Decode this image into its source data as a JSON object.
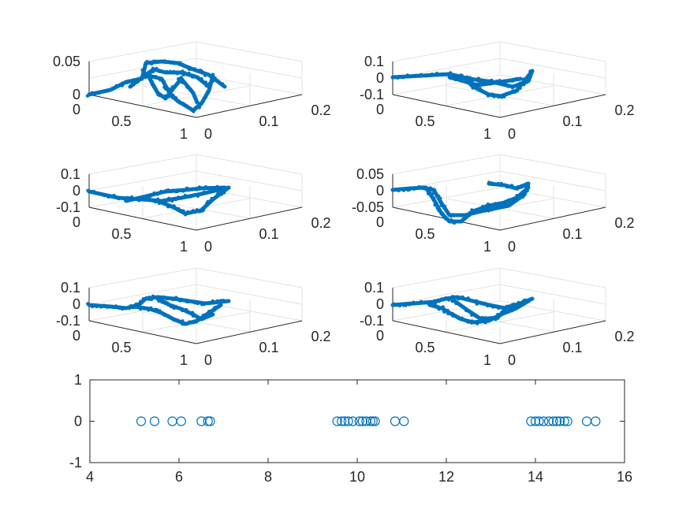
{
  "chart_data": [
    {
      "type": "scatter3d",
      "name": "top-left",
      "z_ticks": [
        "0",
        "0.05"
      ],
      "x_ticks": [
        "0",
        "0.5",
        "1"
      ],
      "y_ticks": [
        "0",
        "0.1",
        "0.2"
      ]
    },
    {
      "type": "scatter3d",
      "name": "top-right",
      "z_ticks": [
        "-0.1",
        "0",
        "0.1"
      ],
      "x_ticks": [
        "0",
        "0.5",
        "1"
      ],
      "y_ticks": [
        "0",
        "0.1",
        "0.2"
      ]
    },
    {
      "type": "scatter3d",
      "name": "middle-left",
      "z_ticks": [
        "-0.1",
        "0",
        "0.1"
      ],
      "x_ticks": [
        "0",
        "0.5",
        "1"
      ],
      "y_ticks": [
        "0",
        "0.1",
        "0.2"
      ]
    },
    {
      "type": "scatter3d",
      "name": "middle-right",
      "z_ticks": [
        "-0.05",
        "0",
        "0.05"
      ],
      "x_ticks": [
        "0",
        "0.5",
        "1"
      ],
      "y_ticks": [
        "0",
        "0.1",
        "0.2"
      ]
    },
    {
      "type": "scatter3d",
      "name": "lower-left",
      "z_ticks": [
        "-0.1",
        "0",
        "0.1"
      ],
      "x_ticks": [
        "0",
        "0.5",
        "1"
      ],
      "y_ticks": [
        "0",
        "0.1",
        "0.2"
      ]
    },
    {
      "type": "scatter3d",
      "name": "lower-right",
      "z_ticks": [
        "-0.1",
        "0",
        "0.1"
      ],
      "x_ticks": [
        "0",
        "0.5",
        "1"
      ],
      "y_ticks": [
        "0",
        "0.1",
        "0.2"
      ]
    },
    {
      "type": "scatter",
      "marker": "open-circle",
      "xlim": [
        4,
        16
      ],
      "ylim": [
        -1,
        1
      ],
      "x_ticks": [
        "4",
        "6",
        "8",
        "10",
        "12",
        "14",
        "16"
      ],
      "y_ticks": [
        "-1",
        "0",
        "1"
      ],
      "x": [
        5.15,
        5.45,
        5.85,
        6.05,
        6.5,
        6.65,
        6.7,
        9.55,
        9.65,
        9.72,
        9.8,
        9.9,
        10.05,
        10.12,
        10.2,
        10.3,
        10.35,
        10.4,
        10.85,
        11.05,
        13.9,
        14.0,
        14.08,
        14.18,
        14.3,
        14.4,
        14.48,
        14.55,
        14.65,
        14.72,
        15.15,
        15.35
      ],
      "y": [
        0,
        0,
        0,
        0,
        0,
        0,
        0,
        0,
        0,
        0,
        0,
        0,
        0,
        0,
        0,
        0,
        0,
        0,
        0,
        0,
        0,
        0,
        0,
        0,
        0,
        0,
        0,
        0,
        0,
        0,
        0,
        0
      ]
    }
  ],
  "style": {
    "series_color": "#0072BD",
    "axis_color": "#262626",
    "grid_color": "#dcdcdc"
  }
}
